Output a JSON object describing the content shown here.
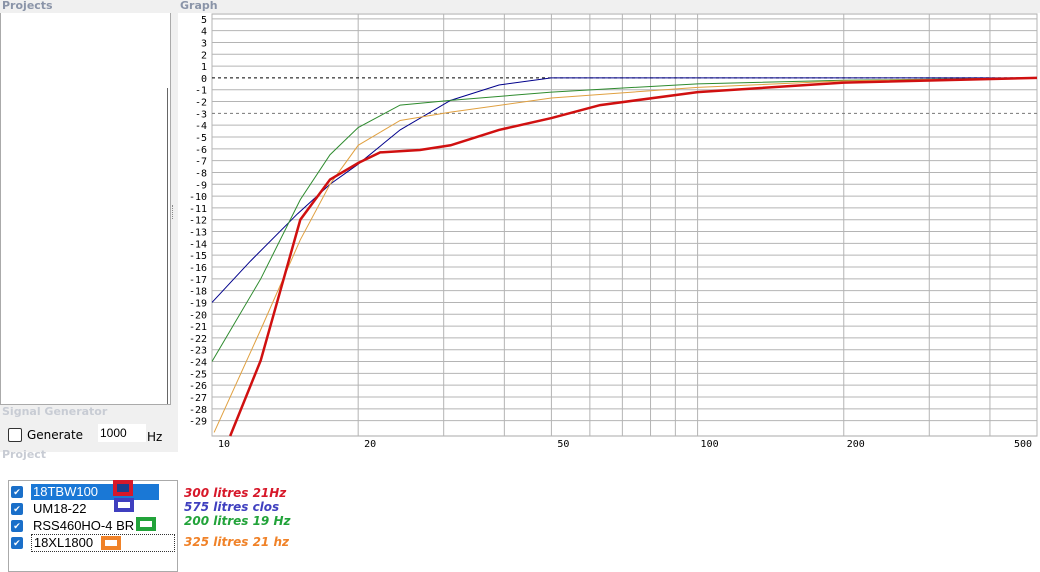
{
  "panels": {
    "projects": "Projects",
    "graph": "Graph",
    "signal_generator": "Signal Generator",
    "project": "Project"
  },
  "signal_generator": {
    "generate_label": "Generate",
    "checked": false,
    "frequency": "1000",
    "unit": "Hz"
  },
  "project_items": [
    {
      "name": "18TBW100",
      "checked": true,
      "selected": true,
      "color": "#d7182a",
      "note": "300 litres 21Hz"
    },
    {
      "name": "UM18-22",
      "checked": true,
      "selected": false,
      "color": "#3f3fbf",
      "note": "575 litres clos"
    },
    {
      "name": "RSS460HO-4 BR",
      "checked": true,
      "selected": false,
      "color": "#22a33a",
      "note": "200 litres 19 Hz"
    },
    {
      "name": "18XL1800",
      "checked": true,
      "selected": false,
      "focused": true,
      "color": "#f08228",
      "note": "325 litres 21 hz"
    }
  ],
  "chart_data": {
    "type": "line",
    "x_scale": "log",
    "xlim": [
      10,
      500
    ],
    "ylim": [
      -30.3,
      6
    ],
    "x_ticks": [
      10,
      20,
      50,
      100,
      200,
      500
    ],
    "y_ticks": [
      5,
      4,
      3,
      2,
      1,
      0,
      -1,
      -2,
      -3,
      -4,
      -5,
      -6,
      -7,
      -8,
      -9,
      -10,
      -11,
      -12,
      -13,
      -14,
      -15,
      -16,
      -17,
      -18,
      -19,
      -20,
      -21,
      -22,
      -23,
      -24,
      -25,
      -26,
      -27,
      -28,
      -29
    ],
    "reference_lines": [
      0,
      -3
    ],
    "grid": true,
    "series": [
      {
        "color": "#00008b",
        "points": [
          [
            10,
            -19
          ],
          [
            12,
            -15.5
          ],
          [
            15,
            -11.5
          ],
          [
            17.5,
            -9
          ],
          [
            20,
            -7.3
          ],
          [
            24.4,
            -4.4
          ],
          [
            31,
            -1.9
          ],
          [
            39,
            -0.6
          ],
          [
            50,
            0
          ],
          [
            500,
            0
          ]
        ]
      },
      {
        "color": "#2e8b2e",
        "points": [
          [
            10,
            -24
          ],
          [
            12.6,
            -17
          ],
          [
            15.2,
            -10.3
          ],
          [
            17.5,
            -6.5
          ],
          [
            20,
            -4.2
          ],
          [
            24.4,
            -2.3
          ],
          [
            31,
            -1.9
          ],
          [
            50,
            -1.2
          ],
          [
            100,
            -0.5
          ],
          [
            200,
            -0.2
          ],
          [
            500,
            0
          ]
        ]
      },
      {
        "color": "#e0a040",
        "points": [
          [
            10.1,
            -30
          ],
          [
            12.6,
            -21.3
          ],
          [
            15.2,
            -13.7
          ],
          [
            17.5,
            -9
          ],
          [
            20,
            -5.7
          ],
          [
            24.4,
            -3.6
          ],
          [
            31,
            -2.9
          ],
          [
            50,
            -1.7
          ],
          [
            100,
            -0.8
          ],
          [
            200,
            -0.25
          ],
          [
            500,
            0
          ]
        ]
      },
      {
        "color": "#d01010",
        "points": [
          [
            10.9,
            -30.3
          ],
          [
            12.6,
            -23.9
          ],
          [
            15.2,
            -12
          ],
          [
            17.5,
            -8.6
          ],
          [
            20,
            -7.2
          ],
          [
            22.2,
            -6.3
          ],
          [
            26.8,
            -6.1
          ],
          [
            31,
            -5.7
          ],
          [
            39,
            -4.4
          ],
          [
            50,
            -3.4
          ],
          [
            63,
            -2.3
          ],
          [
            100,
            -1.2
          ],
          [
            200,
            -0.4
          ],
          [
            500,
            0
          ]
        ]
      }
    ]
  }
}
